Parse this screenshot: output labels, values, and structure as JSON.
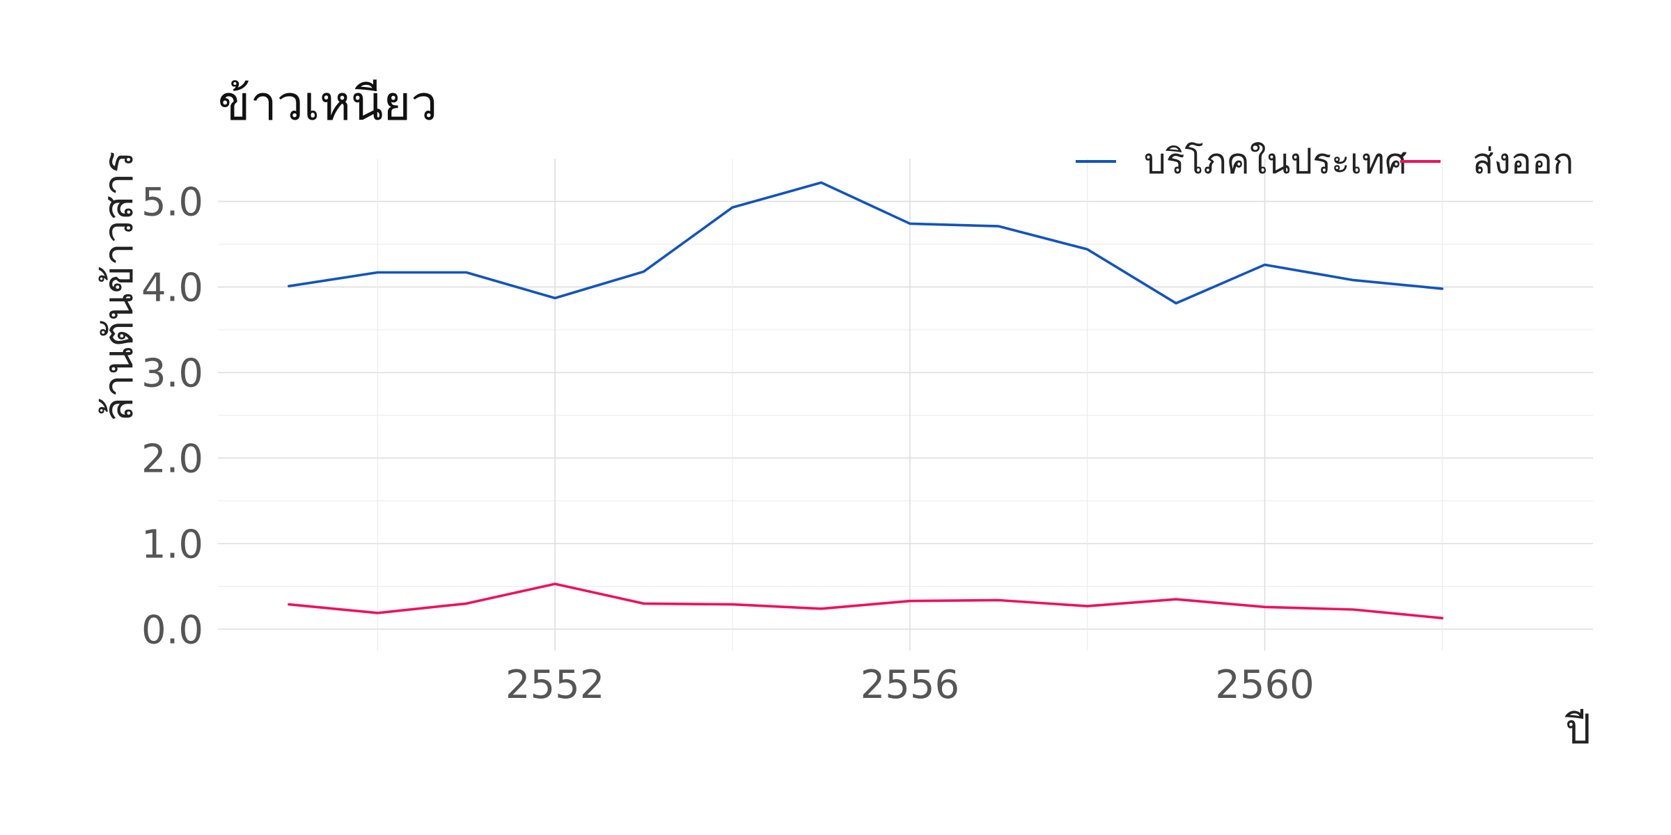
{
  "chart_data": {
    "type": "line",
    "title": "ข้าวเหนียว",
    "xlabel": "ปี",
    "ylabel": "ล้านตันข้าวสาร",
    "x": [
      2549,
      2550,
      2551,
      2552,
      2553,
      2554,
      2555,
      2556,
      2557,
      2558,
      2559,
      2560,
      2561,
      2562
    ],
    "xlim": [
      2548.2,
      2563.7
    ],
    "x_ticks": [
      2552,
      2556,
      2560
    ],
    "x_tick_labels": [
      "2552",
      "2556",
      "2560"
    ],
    "ylim": [
      -0.25,
      5.5
    ],
    "y_ticks": [
      0,
      1,
      2,
      3,
      4,
      5
    ],
    "y_tick_labels": [
      "0.0",
      "1.0",
      "2.0",
      "3.0",
      "4.0",
      "5.0"
    ],
    "grid": true,
    "legend_position": "top-right",
    "series": [
      {
        "name": "บริโภคในประเทศ",
        "color": "#1254bd",
        "values": [
          4.01,
          4.17,
          4.17,
          3.87,
          4.18,
          4.93,
          5.22,
          4.74,
          4.71,
          4.44,
          3.81,
          4.26,
          4.08,
          3.98
        ]
      },
      {
        "name": "ส่งออก",
        "color": "#f0115b",
        "values": [
          0.29,
          0.19,
          0.3,
          0.53,
          0.3,
          0.29,
          0.24,
          0.33,
          0.34,
          0.27,
          0.35,
          0.26,
          0.23,
          0.13
        ]
      }
    ]
  }
}
